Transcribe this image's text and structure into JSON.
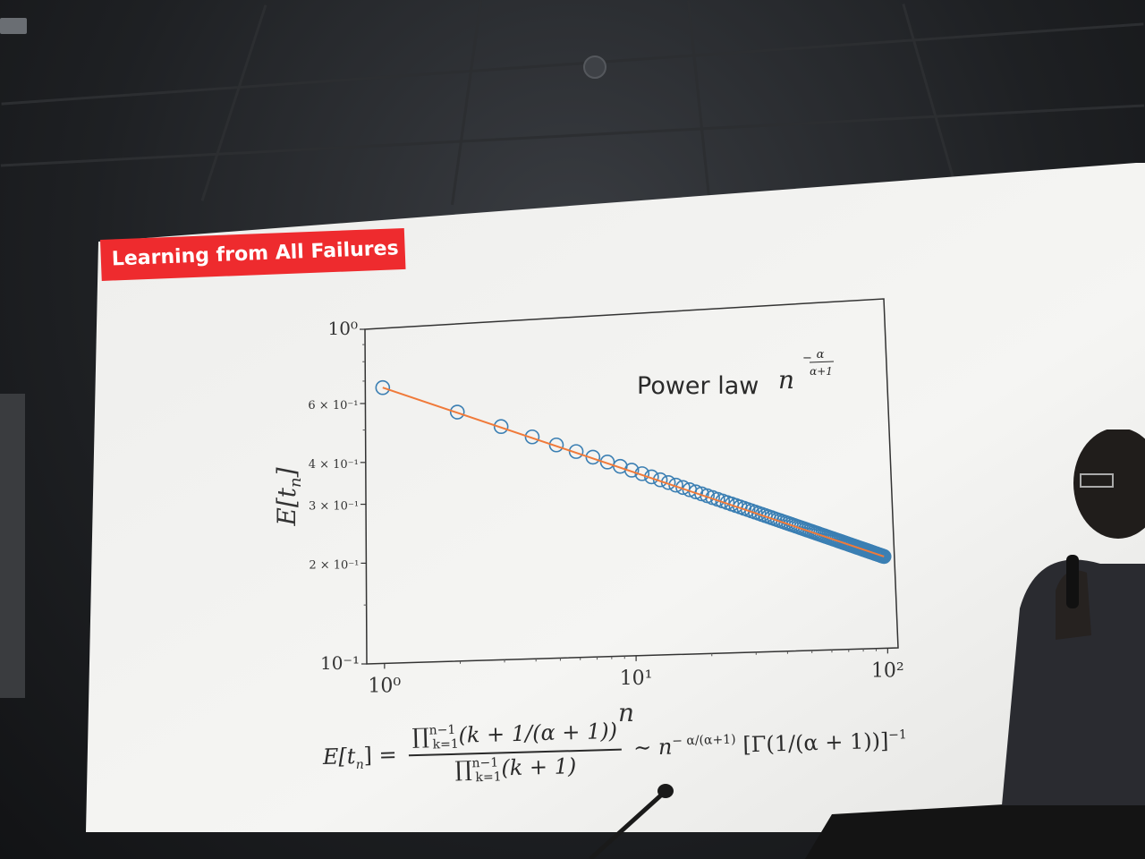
{
  "slide": {
    "title": "Learning from All Failures",
    "annotation_text": "Power law",
    "annotation_var": "n",
    "annotation_exp_num": "α",
    "annotation_exp_den": "α+1",
    "colors": {
      "title_bg": "#ee2b2e",
      "marker": "#3b7fb3",
      "fit_line": "#f07a3a",
      "slide_bg": "#f3f3f1"
    }
  },
  "formula": {
    "lhs": "E[t",
    "lhs_sub": "n",
    "lhs_close": "] =",
    "num_prod": "∏",
    "num_sup": "n−1",
    "num_sub": "k=1",
    "num_body": "(k + 1/(α + 1))",
    "den_prod": "∏",
    "den_sup": "n−1",
    "den_sub": "k=1",
    "den_body": "(k + 1)",
    "rhs_sim": "∼ n",
    "rhs_exp": "− α/(α+1)",
    "rhs_gamma": "[Γ(1/(α + 1))]",
    "rhs_gamma_exp": "−1"
  },
  "chart_data": {
    "type": "scatter",
    "x_scale": "log",
    "y_scale": "log",
    "xlabel": "n",
    "ylabel": "E[t_n]",
    "xlim": [
      0.85,
      110
    ],
    "ylim": [
      0.1,
      1.0
    ],
    "x_ticks": [
      {
        "value": 1,
        "label": "10⁰"
      },
      {
        "value": 10,
        "label": "10¹"
      },
      {
        "value": 100,
        "label": "10²"
      }
    ],
    "y_ticks": [
      {
        "value": 1.0,
        "label": "10⁰"
      },
      {
        "value": 0.6,
        "label": "6 × 10⁻¹"
      },
      {
        "value": 0.4,
        "label": "4 × 10⁻¹"
      },
      {
        "value": 0.3,
        "label": "3 × 10⁻¹"
      },
      {
        "value": 0.2,
        "label": "2 × 10⁻¹"
      },
      {
        "value": 0.1,
        "label": "10⁻¹"
      }
    ],
    "series": [
      {
        "kind": "markers",
        "x_from": 1,
        "x_to": 100,
        "y_at_1": 0.665,
        "exponent": -0.28
      },
      {
        "kind": "fit_line",
        "x_from": 1,
        "x_to": 100,
        "y_at_1": 0.665,
        "exponent": -0.28
      }
    ],
    "grid": false
  }
}
